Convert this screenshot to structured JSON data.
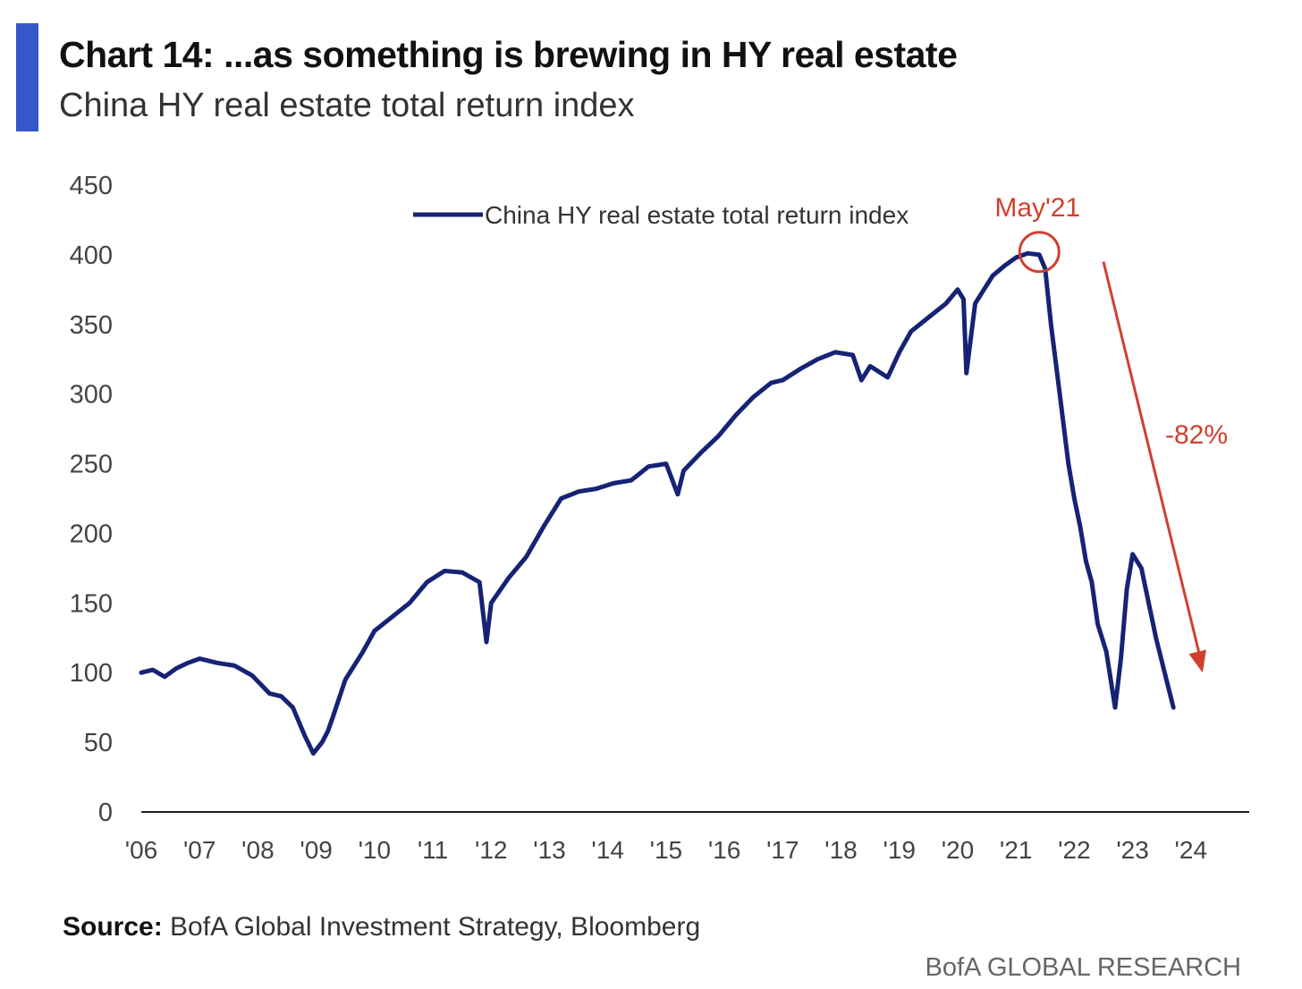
{
  "header": {
    "title": "Chart 14: ...as something is brewing in HY real estate",
    "subtitle": "China HY real estate total return index"
  },
  "footer": {
    "source_label": "Source:",
    "source_text": "BofA Global Investment Strategy, Bloomberg",
    "brand": "BofA GLOBAL RESEARCH"
  },
  "colors": {
    "accent": "#3557c9",
    "series": "#162375",
    "annotation": "#d0402f"
  },
  "chart_data": {
    "type": "line",
    "ylim": [
      0,
      450
    ],
    "yticks": [
      0,
      50,
      100,
      150,
      200,
      250,
      300,
      350,
      400,
      450
    ],
    "xlim": [
      2006,
      2025
    ],
    "xtick_labels": [
      "'06",
      "'07",
      "'08",
      "'09",
      "'10",
      "'11",
      "'12",
      "'13",
      "'14",
      "'15",
      "'16",
      "'17",
      "'18",
      "'19",
      "'20",
      "'21",
      "'22",
      "'23",
      "'24"
    ],
    "grid": false,
    "legend": {
      "position": "top-center",
      "label": "China HY real estate total return index"
    },
    "series": [
      {
        "name": "China HY real estate total return index",
        "x": [
          2006.0,
          2006.2,
          2006.4,
          2006.6,
          2006.8,
          2007.0,
          2007.3,
          2007.6,
          2007.9,
          2008.2,
          2008.4,
          2008.6,
          2008.8,
          2008.95,
          2009.1,
          2009.2,
          2009.3,
          2009.5,
          2009.8,
          2010.0,
          2010.3,
          2010.6,
          2010.9,
          2011.2,
          2011.5,
          2011.8,
          2011.92,
          2012.0,
          2012.3,
          2012.6,
          2012.9,
          2013.2,
          2013.5,
          2013.8,
          2014.1,
          2014.4,
          2014.7,
          2015.0,
          2015.2,
          2015.3,
          2015.6,
          2015.9,
          2016.2,
          2016.5,
          2016.8,
          2017.0,
          2017.3,
          2017.6,
          2017.9,
          2018.2,
          2018.35,
          2018.5,
          2018.8,
          2019.0,
          2019.2,
          2019.5,
          2019.8,
          2020.0,
          2020.1,
          2020.15,
          2020.3,
          2020.6,
          2020.8,
          2021.0,
          2021.2,
          2021.4,
          2021.5,
          2021.6,
          2021.75,
          2021.9,
          2022.0,
          2022.1,
          2022.2,
          2022.3,
          2022.4,
          2022.55,
          2022.7,
          2022.8,
          2022.9,
          2023.0,
          2023.15,
          2023.25,
          2023.4,
          2023.55,
          2023.7
        ],
        "values": [
          100,
          102,
          97,
          103,
          107,
          110,
          107,
          105,
          98,
          85,
          83,
          75,
          55,
          42,
          50,
          58,
          70,
          95,
          115,
          130,
          140,
          150,
          165,
          173,
          172,
          165,
          122,
          150,
          168,
          183,
          205,
          225,
          230,
          232,
          236,
          238,
          248,
          250,
          228,
          245,
          258,
          270,
          285,
          298,
          308,
          310,
          318,
          325,
          330,
          328,
          310,
          320,
          312,
          330,
          345,
          355,
          365,
          375,
          368,
          315,
          365,
          385,
          392,
          398,
          401,
          400,
          390,
          350,
          300,
          250,
          225,
          205,
          180,
          165,
          135,
          115,
          75,
          110,
          160,
          185,
          175,
          155,
          125,
          100,
          75
        ]
      }
    ],
    "annotations": [
      {
        "type": "circle",
        "label": "May'21",
        "x": 2021.4,
        "y": 402
      },
      {
        "type": "arrow",
        "label": "-82%",
        "from": {
          "x": 2022.5,
          "y": 395
        },
        "to": {
          "x": 2024.2,
          "y": 100
        }
      }
    ]
  }
}
